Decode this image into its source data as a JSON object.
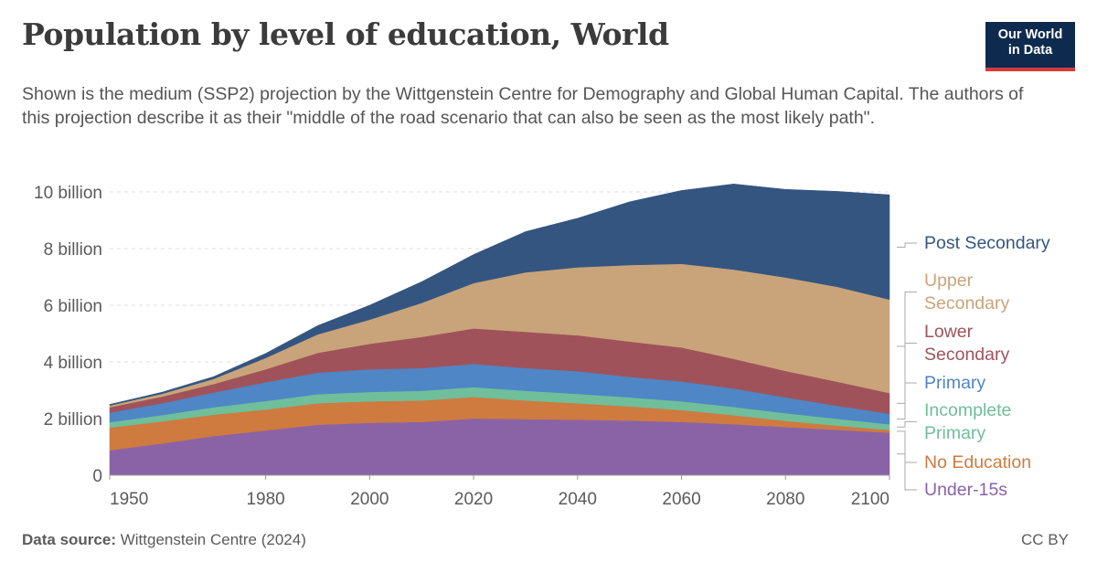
{
  "header": {
    "title": "Population by level of education, World",
    "subtitle": "Shown is the medium (SSP2) projection by the Wittgenstein Centre for Demography and Global Human Capital. The authors of this projection describe it as their \"middle of the road scenario that can also be seen as the most likely path\".",
    "logo_line1": "Our World",
    "logo_line2": "in Data"
  },
  "footer": {
    "source_label": "Data source:",
    "source_text": "Wittgenstein Centre (2024)",
    "license": "CC BY"
  },
  "colors": {
    "under15": "#8a63a7",
    "no_education": "#cf7a3f",
    "incomplete_primary": "#6fbf9a",
    "primary": "#4f86c6",
    "lower_secondary": "#a0525b",
    "upper_secondary": "#c9a47a",
    "post_secondary": "#345580"
  },
  "chart_data": {
    "type": "area",
    "stacked": true,
    "title": "Population by level of education, World",
    "ylim": [
      0,
      10
    ],
    "xlim": [
      1950,
      2100
    ],
    "y_ticks": [
      {
        "value": 0,
        "label": "0"
      },
      {
        "value": 2,
        "label": "2 billion"
      },
      {
        "value": 4,
        "label": "4 billion"
      },
      {
        "value": 6,
        "label": "6 billion"
      },
      {
        "value": 8,
        "label": "8 billion"
      },
      {
        "value": 10,
        "label": "10 billion"
      }
    ],
    "x_ticks": [
      {
        "value": 1950,
        "label": "1950"
      },
      {
        "value": 1980,
        "label": "1980"
      },
      {
        "value": 2000,
        "label": "2000"
      },
      {
        "value": 2020,
        "label": "2020"
      },
      {
        "value": 2040,
        "label": "2040"
      },
      {
        "value": 2060,
        "label": "2060"
      },
      {
        "value": 2080,
        "label": "2080"
      },
      {
        "value": 2100,
        "label": "2100"
      }
    ],
    "grid": true,
    "legend_position": "right",
    "x": [
      1950,
      1960,
      1970,
      1980,
      1990,
      2000,
      2010,
      2020,
      2030,
      2040,
      2050,
      2060,
      2070,
      2080,
      2090,
      2100
    ],
    "series": [
      {
        "name": "Under-15s",
        "color_key": "under15",
        "values": [
          0.88,
          1.12,
          1.38,
          1.58,
          1.78,
          1.85,
          1.88,
          2.0,
          1.98,
          1.96,
          1.93,
          1.88,
          1.8,
          1.7,
          1.6,
          1.5
        ]
      },
      {
        "name": "No Education",
        "color_key": "no_education",
        "values": [
          0.8,
          0.78,
          0.76,
          0.74,
          0.76,
          0.76,
          0.76,
          0.76,
          0.66,
          0.58,
          0.5,
          0.42,
          0.32,
          0.22,
          0.15,
          0.1
        ]
      },
      {
        "name": "Incomplete Primary",
        "color_key": "incomplete_primary",
        "values": [
          0.19,
          0.22,
          0.26,
          0.3,
          0.32,
          0.33,
          0.34,
          0.35,
          0.34,
          0.33,
          0.32,
          0.31,
          0.29,
          0.27,
          0.24,
          0.2
        ]
      },
      {
        "name": "Primary",
        "color_key": "primary",
        "values": [
          0.34,
          0.42,
          0.52,
          0.66,
          0.76,
          0.8,
          0.8,
          0.82,
          0.8,
          0.8,
          0.72,
          0.7,
          0.65,
          0.56,
          0.46,
          0.37
        ]
      },
      {
        "name": "Lower Secondary",
        "color_key": "lower_secondary",
        "values": [
          0.19,
          0.23,
          0.3,
          0.46,
          0.7,
          0.9,
          1.1,
          1.25,
          1.28,
          1.27,
          1.25,
          1.2,
          1.05,
          0.93,
          0.85,
          0.73
        ]
      },
      {
        "name": "Upper Secondary",
        "color_key": "upper_secondary",
        "values": [
          0.06,
          0.1,
          0.18,
          0.4,
          0.65,
          0.85,
          1.2,
          1.6,
          2.1,
          2.4,
          2.7,
          2.95,
          3.15,
          3.3,
          3.35,
          3.3
        ]
      },
      {
        "name": "Post Secondary",
        "color_key": "post_secondary",
        "values": [
          0.04,
          0.06,
          0.08,
          0.16,
          0.31,
          0.51,
          0.75,
          1.01,
          1.44,
          1.73,
          2.23,
          2.59,
          3.02,
          3.11,
          3.37,
          3.7
        ]
      }
    ],
    "legend_labels": [
      {
        "key": "post_secondary",
        "lines": [
          "Post Secondary"
        ]
      },
      {
        "key": "upper_secondary",
        "lines": [
          "Upper",
          "Secondary"
        ]
      },
      {
        "key": "lower_secondary",
        "lines": [
          "Lower",
          "Secondary"
        ]
      },
      {
        "key": "primary",
        "lines": [
          "Primary"
        ]
      },
      {
        "key": "incomplete_primary",
        "lines": [
          "Incomplete",
          "Primary"
        ]
      },
      {
        "key": "no_education",
        "lines": [
          "No Education"
        ]
      },
      {
        "key": "under15",
        "lines": [
          "Under-15s"
        ]
      }
    ]
  }
}
